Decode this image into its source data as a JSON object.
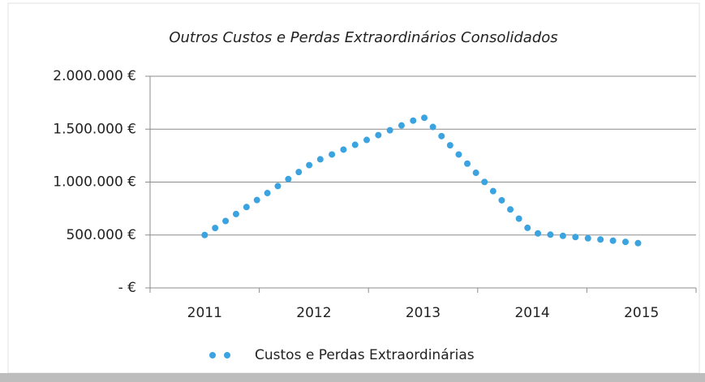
{
  "chart_data": {
    "type": "line",
    "title": "Outros Custos e Perdas Extraordinários Consolidados",
    "categories": [
      "2011",
      "2012",
      "2013",
      "2014",
      "2015"
    ],
    "series": [
      {
        "name": "Custos e Perdas Extraordinárias",
        "color": "#3aa3e0",
        "values": [
          500000,
          1190000,
          1620000,
          520000,
          420000
        ]
      }
    ],
    "ylim": [
      0,
      2000000
    ],
    "yticks": [
      {
        "value": 0,
        "label": "-  €"
      },
      {
        "value": 500000,
        "label": "500.000 €"
      },
      {
        "value": 1000000,
        "label": "1.000.000 €"
      },
      {
        "value": 1500000,
        "label": "1.500.000 €"
      },
      {
        "value": 2000000,
        "label": "2.000.000 €"
      }
    ],
    "grid": true,
    "legend": "bottom"
  }
}
